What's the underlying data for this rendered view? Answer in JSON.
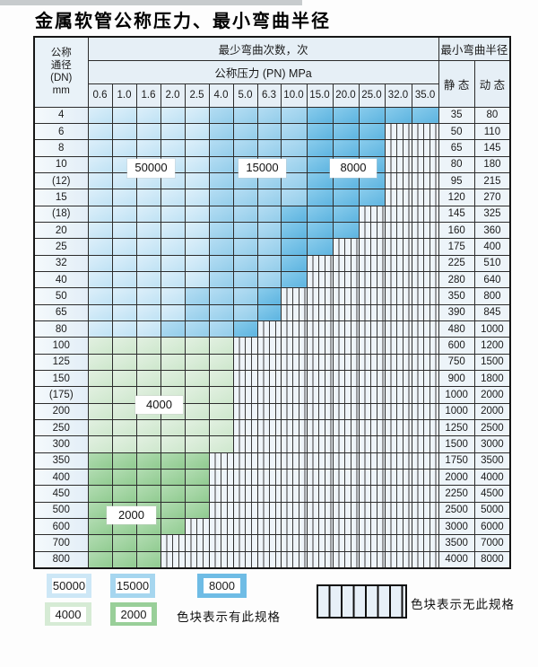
{
  "title": "金属软管公称压力、最小弯曲半径",
  "table": {
    "dn_header_lines": [
      "公称",
      "通径",
      "(DN)",
      "mm"
    ],
    "bend_times_header": "最少弯曲次数，次",
    "pressure_header": "公称压力 (PN) MPa",
    "radius_header": "最小弯曲半径",
    "static_header": "静 态",
    "dynamic_header": "动 态",
    "pressures": [
      "0.6",
      "1.0",
      "1.6",
      "2.0",
      "2.5",
      "4.0",
      "5.0",
      "6.3",
      "10.0",
      "15.0",
      "20.0",
      "25.0",
      "32.0",
      "35.0"
    ],
    "band_colors": {
      "50000": "#cde7f6",
      "15000": "#a6d6ef",
      "8000": "#6fbce5",
      "4000": "#d6ebd5",
      "2000": "#99cf99",
      "no_spec": "striped"
    },
    "overlay_labels": [
      "50000",
      "15000",
      "8000",
      "4000",
      "2000"
    ],
    "rows": [
      {
        "dn": "4",
        "cells": [
          50000,
          50000,
          50000,
          50000,
          50000,
          15000,
          15000,
          15000,
          15000,
          8000,
          8000,
          8000,
          8000,
          8000
        ],
        "static": "35",
        "dynamic": "80"
      },
      {
        "dn": "6",
        "cells": [
          50000,
          50000,
          50000,
          50000,
          50000,
          15000,
          15000,
          15000,
          15000,
          8000,
          8000,
          8000,
          null,
          null
        ],
        "static": "50",
        "dynamic": "110"
      },
      {
        "dn": "8",
        "cells": [
          50000,
          50000,
          50000,
          50000,
          50000,
          15000,
          15000,
          15000,
          15000,
          8000,
          8000,
          8000,
          null,
          null
        ],
        "static": "65",
        "dynamic": "145"
      },
      {
        "dn": "10",
        "cells": [
          50000,
          50000,
          50000,
          50000,
          50000,
          15000,
          15000,
          15000,
          15000,
          8000,
          8000,
          8000,
          null,
          null
        ],
        "static": "80",
        "dynamic": "180"
      },
      {
        "dn": "(12)",
        "cells": [
          50000,
          50000,
          50000,
          50000,
          50000,
          15000,
          15000,
          15000,
          15000,
          8000,
          8000,
          8000,
          null,
          null
        ],
        "static": "95",
        "dynamic": "215"
      },
      {
        "dn": "15",
        "cells": [
          50000,
          50000,
          50000,
          50000,
          50000,
          15000,
          15000,
          15000,
          15000,
          8000,
          8000,
          8000,
          null,
          null
        ],
        "static": "120",
        "dynamic": "270"
      },
      {
        "dn": "(18)",
        "cells": [
          50000,
          50000,
          50000,
          50000,
          50000,
          15000,
          15000,
          15000,
          8000,
          8000,
          8000,
          null,
          null,
          null
        ],
        "static": "145",
        "dynamic": "325"
      },
      {
        "dn": "20",
        "cells": [
          50000,
          50000,
          50000,
          50000,
          50000,
          15000,
          15000,
          15000,
          8000,
          8000,
          8000,
          null,
          null,
          null
        ],
        "static": "160",
        "dynamic": "360"
      },
      {
        "dn": "25",
        "cells": [
          50000,
          50000,
          50000,
          50000,
          50000,
          15000,
          15000,
          15000,
          8000,
          8000,
          null,
          null,
          null,
          null
        ],
        "static": "175",
        "dynamic": "400"
      },
      {
        "dn": "32",
        "cells": [
          50000,
          50000,
          50000,
          50000,
          50000,
          15000,
          15000,
          15000,
          8000,
          null,
          null,
          null,
          null,
          null
        ],
        "static": "225",
        "dynamic": "510"
      },
      {
        "dn": "40",
        "cells": [
          50000,
          50000,
          50000,
          50000,
          50000,
          15000,
          15000,
          15000,
          8000,
          null,
          null,
          null,
          null,
          null
        ],
        "static": "280",
        "dynamic": "640"
      },
      {
        "dn": "50",
        "cells": [
          50000,
          50000,
          50000,
          50000,
          15000,
          15000,
          15000,
          8000,
          null,
          null,
          null,
          null,
          null,
          null
        ],
        "static": "350",
        "dynamic": "800"
      },
      {
        "dn": "65",
        "cells": [
          50000,
          50000,
          50000,
          50000,
          15000,
          15000,
          15000,
          8000,
          null,
          null,
          null,
          null,
          null,
          null
        ],
        "static": "390",
        "dynamic": "845"
      },
      {
        "dn": "80",
        "cells": [
          50000,
          50000,
          50000,
          15000,
          15000,
          15000,
          8000,
          null,
          null,
          null,
          null,
          null,
          null,
          null
        ],
        "static": "480",
        "dynamic": "1000"
      },
      {
        "dn": "100",
        "cells": [
          4000,
          4000,
          4000,
          4000,
          4000,
          4000,
          null,
          null,
          null,
          null,
          null,
          null,
          null,
          null
        ],
        "static": "600",
        "dynamic": "1200"
      },
      {
        "dn": "125",
        "cells": [
          4000,
          4000,
          4000,
          4000,
          4000,
          4000,
          null,
          null,
          null,
          null,
          null,
          null,
          null,
          null
        ],
        "static": "750",
        "dynamic": "1500"
      },
      {
        "dn": "150",
        "cells": [
          4000,
          4000,
          4000,
          4000,
          4000,
          4000,
          null,
          null,
          null,
          null,
          null,
          null,
          null,
          null
        ],
        "static": "900",
        "dynamic": "1800"
      },
      {
        "dn": "(175)",
        "cells": [
          4000,
          4000,
          4000,
          4000,
          4000,
          4000,
          null,
          null,
          null,
          null,
          null,
          null,
          null,
          null
        ],
        "static": "1000",
        "dynamic": "2000"
      },
      {
        "dn": "200",
        "cells": [
          4000,
          4000,
          4000,
          4000,
          4000,
          4000,
          null,
          null,
          null,
          null,
          null,
          null,
          null,
          null
        ],
        "static": "1000",
        "dynamic": "2000"
      },
      {
        "dn": "250",
        "cells": [
          4000,
          4000,
          4000,
          4000,
          4000,
          4000,
          null,
          null,
          null,
          null,
          null,
          null,
          null,
          null
        ],
        "static": "1250",
        "dynamic": "2500"
      },
      {
        "dn": "300",
        "cells": [
          4000,
          4000,
          4000,
          4000,
          4000,
          4000,
          null,
          null,
          null,
          null,
          null,
          null,
          null,
          null
        ],
        "static": "1500",
        "dynamic": "3000"
      },
      {
        "dn": "350",
        "cells": [
          2000,
          2000,
          2000,
          2000,
          2000,
          null,
          null,
          null,
          null,
          null,
          null,
          null,
          null,
          null
        ],
        "static": "1750",
        "dynamic": "3500"
      },
      {
        "dn": "400",
        "cells": [
          2000,
          2000,
          2000,
          2000,
          2000,
          null,
          null,
          null,
          null,
          null,
          null,
          null,
          null,
          null
        ],
        "static": "2000",
        "dynamic": "4000"
      },
      {
        "dn": "450",
        "cells": [
          2000,
          2000,
          2000,
          2000,
          2000,
          null,
          null,
          null,
          null,
          null,
          null,
          null,
          null,
          null
        ],
        "static": "2250",
        "dynamic": "4500"
      },
      {
        "dn": "500",
        "cells": [
          2000,
          2000,
          2000,
          2000,
          2000,
          null,
          null,
          null,
          null,
          null,
          null,
          null,
          null,
          null
        ],
        "static": "2500",
        "dynamic": "5000"
      },
      {
        "dn": "600",
        "cells": [
          2000,
          2000,
          2000,
          2000,
          null,
          null,
          null,
          null,
          null,
          null,
          null,
          null,
          null,
          null
        ],
        "static": "3000",
        "dynamic": "6000"
      },
      {
        "dn": "700",
        "cells": [
          2000,
          2000,
          2000,
          null,
          null,
          null,
          null,
          null,
          null,
          null,
          null,
          null,
          null,
          null
        ],
        "static": "3500",
        "dynamic": "7000"
      },
      {
        "dn": "800",
        "cells": [
          2000,
          2000,
          2000,
          null,
          null,
          null,
          null,
          null,
          null,
          null,
          null,
          null,
          null,
          null
        ],
        "static": "4000",
        "dynamic": "8000"
      }
    ]
  },
  "legend": {
    "swatches": [
      {
        "label": "50000",
        "color": "#cde7f6"
      },
      {
        "label": "15000",
        "color": "#a6d6ef"
      },
      {
        "label": "8000",
        "color": "#6fbce5"
      },
      {
        "label": "4000",
        "color": "#d6ebd5"
      },
      {
        "label": "2000",
        "color": "#99cf99"
      }
    ],
    "has_spec_text": "色块表示有此规格",
    "no_spec_text": "色块表示无此规格"
  }
}
